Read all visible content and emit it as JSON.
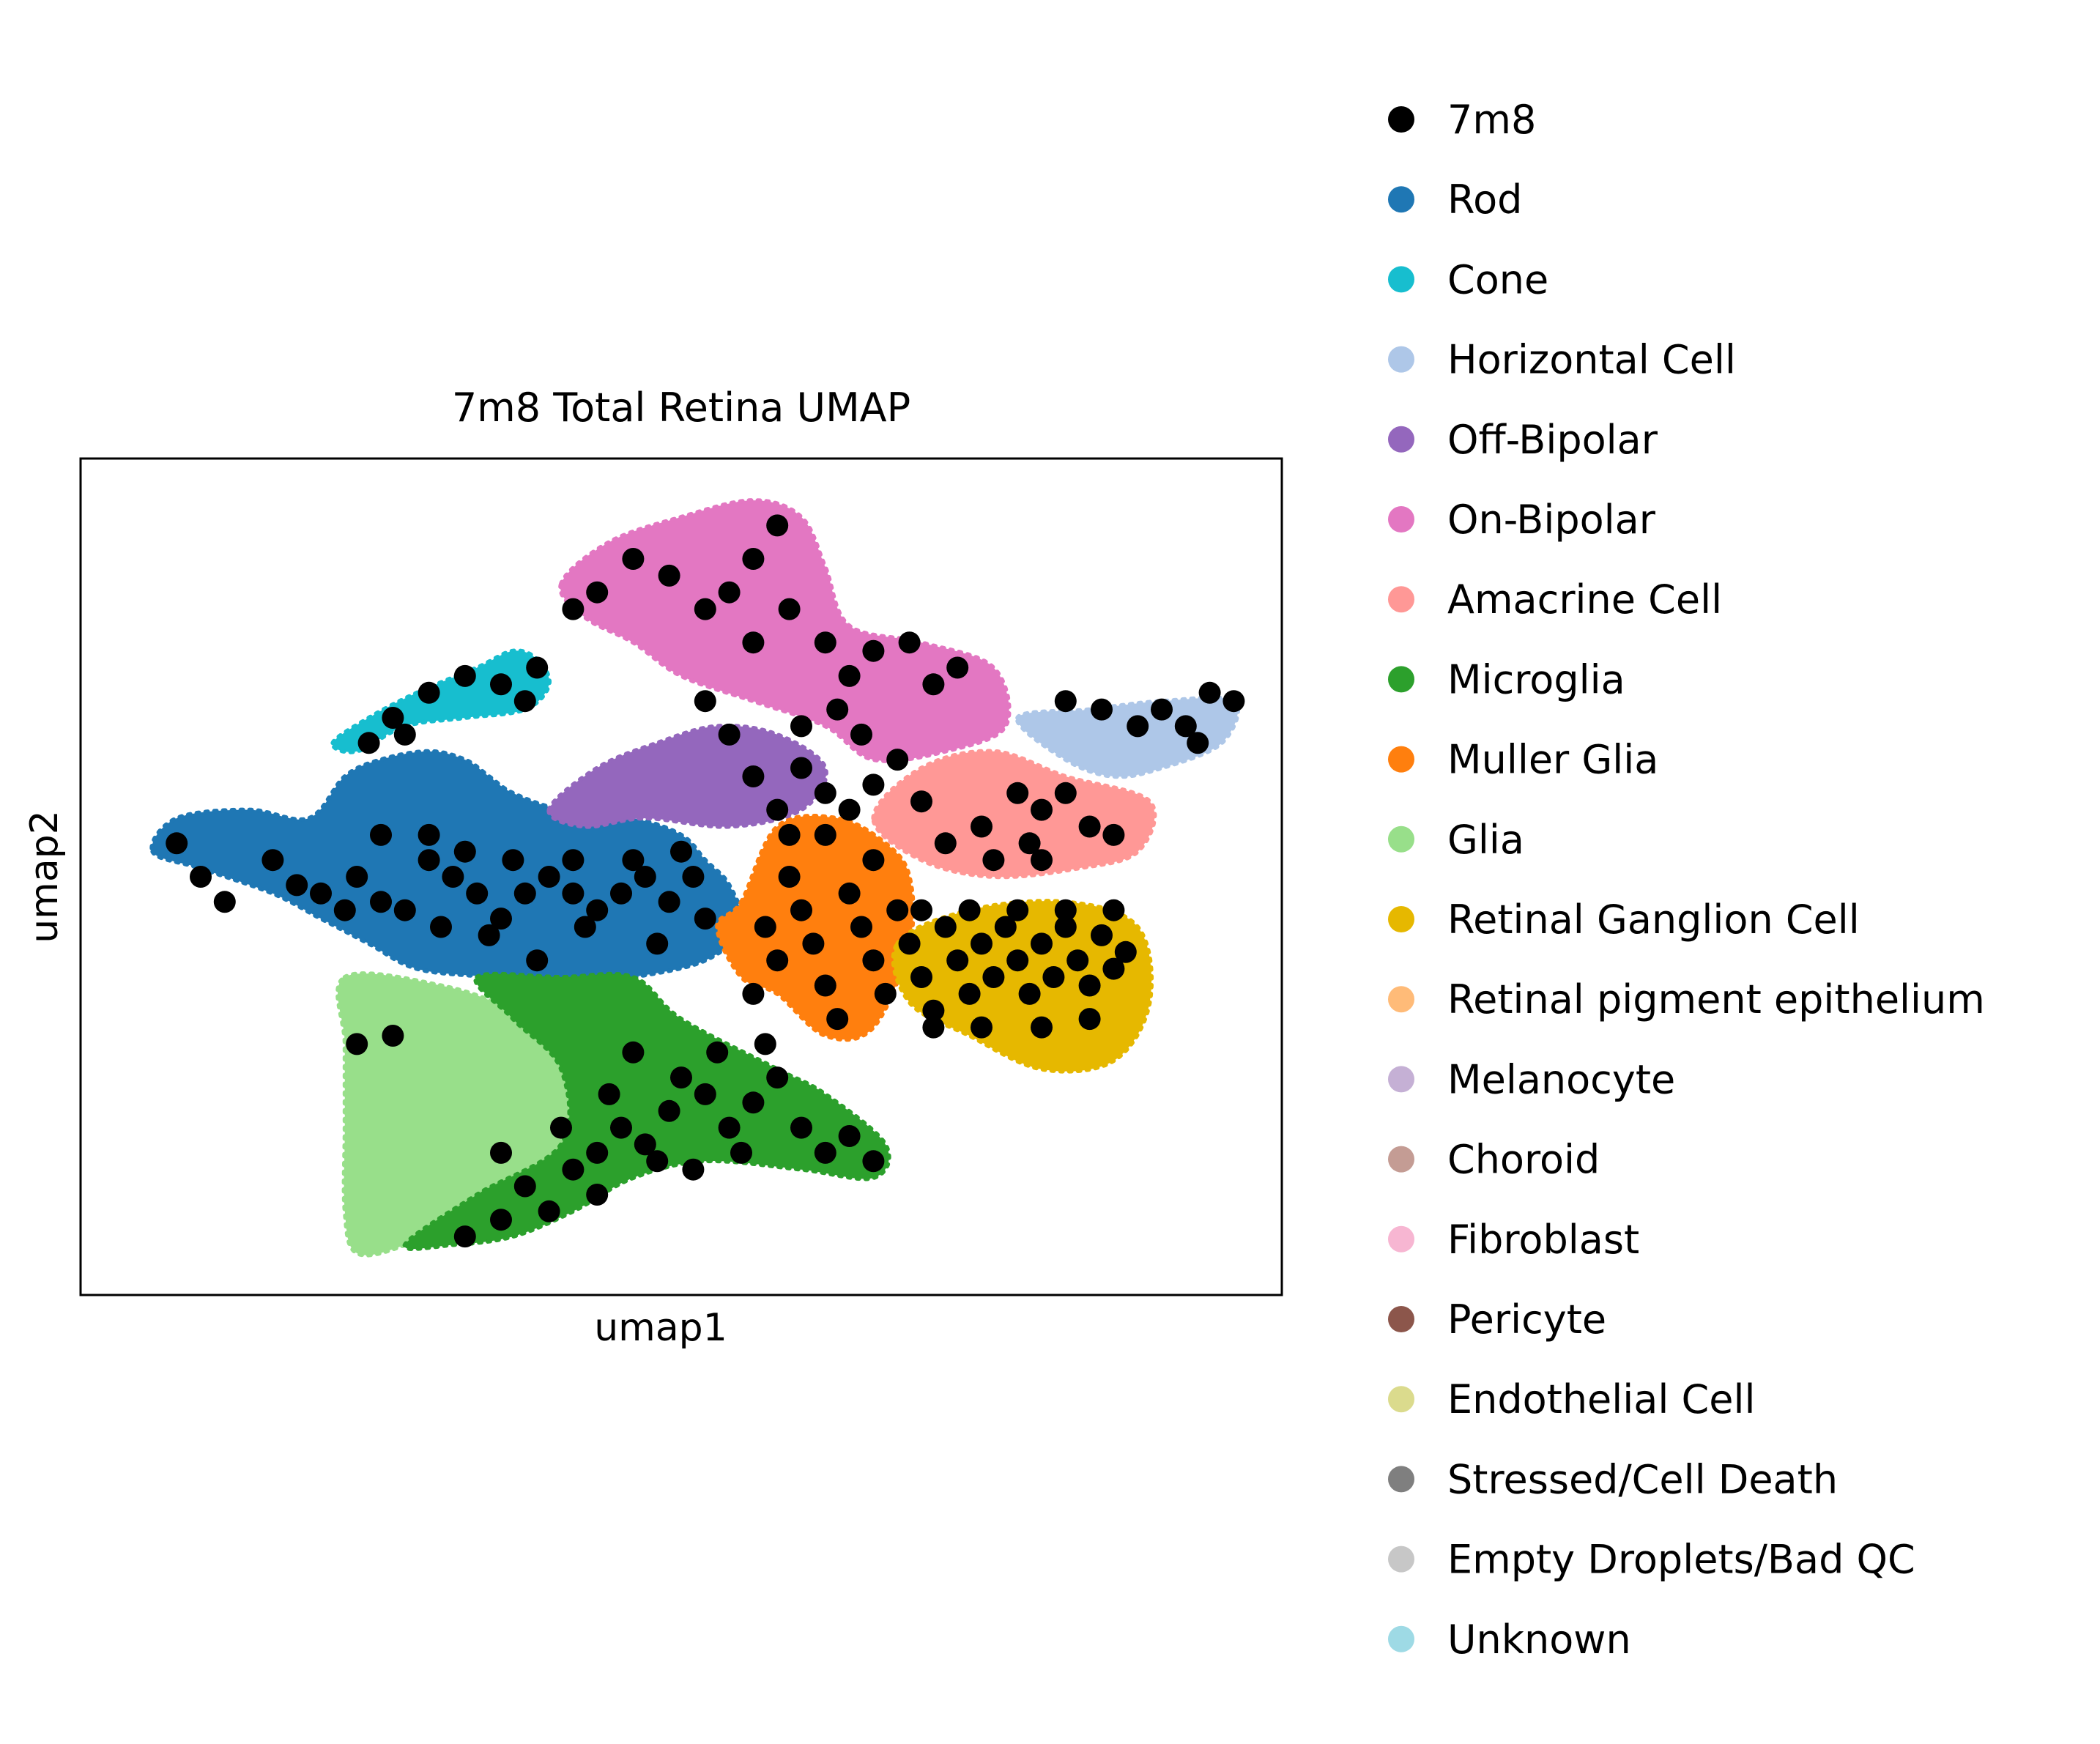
{
  "chart_data": {
    "type": "scatter",
    "title": "7m8 Total Retina UMAP",
    "xlabel": "umap1",
    "ylabel": "umap2",
    "xlim": [
      0,
      100
    ],
    "ylim": [
      0,
      100
    ],
    "grid": false,
    "ticks": false,
    "legend_position": "right",
    "highlight_series": "7m8",
    "legend": [
      {
        "name": "7m8",
        "color": "#000000"
      },
      {
        "name": "Rod",
        "color": "#1f77b4"
      },
      {
        "name": "Cone",
        "color": "#17becf"
      },
      {
        "name": "Horizontal Cell",
        "color": "#aec7e8"
      },
      {
        "name": "Off-Bipolar",
        "color": "#9467bd"
      },
      {
        "name": "On-Bipolar",
        "color": "#e377c2"
      },
      {
        "name": "Amacrine Cell",
        "color": "#ff9896"
      },
      {
        "name": "Microglia",
        "color": "#2ca02c"
      },
      {
        "name": "Muller Glia",
        "color": "#ff7f0e"
      },
      {
        "name": "Glia",
        "color": "#98df8a"
      },
      {
        "name": "Retinal Ganglion Cell",
        "color": "#e6b800"
      },
      {
        "name": "Retinal pigment epithelium",
        "color": "#ffbb78"
      },
      {
        "name": "Melanocyte",
        "color": "#c5b0d5"
      },
      {
        "name": "Choroid",
        "color": "#c49c94"
      },
      {
        "name": "Fibroblast",
        "color": "#f7b6d2"
      },
      {
        "name": "Pericyte",
        "color": "#8c564b"
      },
      {
        "name": "Endothelial Cell",
        "color": "#dbdb8d"
      },
      {
        "name": "Stressed/Cell Death",
        "color": "#7f7f7f"
      },
      {
        "name": "Empty Droplets/Bad QC",
        "color": "#c7c7c7"
      },
      {
        "name": "Unknown",
        "color": "#9edae5"
      }
    ],
    "clusters": [
      {
        "series": "Rod",
        "color": "#1f77b4",
        "points": [
          [
            6,
            53
          ],
          [
            10,
            51
          ],
          [
            16,
            48
          ],
          [
            20,
            45
          ],
          [
            24,
            42
          ],
          [
            28,
            39
          ],
          [
            34,
            38
          ],
          [
            40,
            37
          ],
          [
            46,
            38
          ],
          [
            52,
            40
          ],
          [
            55,
            44
          ],
          [
            54,
            49
          ],
          [
            52,
            52
          ],
          [
            50,
            55
          ],
          [
            46,
            57
          ],
          [
            40,
            58
          ],
          [
            36,
            60
          ],
          [
            34,
            62
          ],
          [
            32,
            64
          ],
          [
            29,
            65
          ],
          [
            25,
            64
          ],
          [
            22,
            62
          ],
          [
            19,
            57
          ],
          [
            14,
            58
          ],
          [
            8,
            57
          ]
        ]
      },
      {
        "series": "Cone",
        "color": "#17becf",
        "points": [
          [
            21,
            66
          ],
          [
            24,
            69
          ],
          [
            28,
            72
          ],
          [
            33,
            75
          ],
          [
            36,
            77
          ],
          [
            38,
            76
          ],
          [
            39,
            73
          ],
          [
            37,
            70
          ],
          [
            32,
            69
          ],
          [
            27,
            68
          ],
          [
            23,
            65
          ]
        ]
      },
      {
        "series": "Glia",
        "color": "#98df8a",
        "points": [
          [
            22,
            38
          ],
          [
            30,
            37
          ],
          [
            36,
            34
          ],
          [
            40,
            30
          ],
          [
            42,
            22
          ],
          [
            38,
            15
          ],
          [
            32,
            10
          ],
          [
            27,
            6
          ],
          [
            23,
            5
          ],
          [
            22,
            10
          ],
          [
            22,
            20
          ],
          [
            22,
            30
          ]
        ]
      },
      {
        "series": "Microglia",
        "color": "#2ca02c",
        "points": [
          [
            33,
            38
          ],
          [
            40,
            38
          ],
          [
            46,
            38
          ],
          [
            50,
            33
          ],
          [
            58,
            27
          ],
          [
            62,
            24
          ],
          [
            67,
            18
          ],
          [
            66,
            14
          ],
          [
            60,
            15
          ],
          [
            52,
            16
          ],
          [
            46,
            14
          ],
          [
            41,
            10
          ],
          [
            36,
            7
          ],
          [
            31,
            6
          ],
          [
            27,
            6
          ],
          [
            33,
            12
          ],
          [
            40,
            18
          ],
          [
            40,
            27
          ],
          [
            36,
            33
          ]
        ]
      },
      {
        "series": "Muller Glia",
        "color": "#ff7f0e",
        "points": [
          [
            55,
            47
          ],
          [
            58,
            56
          ],
          [
            63,
            57
          ],
          [
            67,
            54
          ],
          [
            69,
            50
          ],
          [
            69,
            42
          ],
          [
            66,
            32
          ],
          [
            62,
            31
          ],
          [
            58,
            36
          ],
          [
            55,
            38
          ],
          [
            53,
            44
          ]
        ]
      },
      {
        "series": "Off-Bipolar",
        "color": "#9467bd",
        "points": [
          [
            39,
            58
          ],
          [
            43,
            63
          ],
          [
            48,
            66
          ],
          [
            53,
            68
          ],
          [
            58,
            67
          ],
          [
            62,
            63
          ],
          [
            60,
            58
          ],
          [
            54,
            56
          ],
          [
            47,
            57
          ],
          [
            42,
            56
          ]
        ]
      },
      {
        "series": "On-Bipolar",
        "color": "#e377c2",
        "points": [
          [
            40,
            85
          ],
          [
            44,
            90
          ],
          [
            50,
            93
          ],
          [
            56,
            95
          ],
          [
            60,
            93
          ],
          [
            62,
            87
          ],
          [
            64,
            80
          ],
          [
            70,
            78
          ],
          [
            76,
            75
          ],
          [
            77,
            68
          ],
          [
            72,
            65
          ],
          [
            66,
            64
          ],
          [
            62,
            68
          ],
          [
            56,
            71
          ],
          [
            50,
            74
          ],
          [
            46,
            78
          ],
          [
            42,
            81
          ]
        ]
      },
      {
        "series": "Amacrine Cell",
        "color": "#ff9896",
        "points": [
          [
            66,
            57
          ],
          [
            70,
            63
          ],
          [
            76,
            65
          ],
          [
            82,
            62
          ],
          [
            89,
            59
          ],
          [
            88,
            53
          ],
          [
            83,
            51
          ],
          [
            76,
            50
          ],
          [
            70,
            52
          ]
        ]
      },
      {
        "series": "Horizontal Cell",
        "color": "#aec7e8",
        "points": [
          [
            78,
            69
          ],
          [
            84,
            70
          ],
          [
            90,
            71
          ],
          [
            96,
            71
          ],
          [
            95,
            66
          ],
          [
            90,
            63
          ],
          [
            86,
            62
          ],
          [
            82,
            64
          ]
        ]
      },
      {
        "series": "Retinal Ganglion Cell",
        "color": "#e6b800",
        "points": [
          [
            68,
            42
          ],
          [
            74,
            46
          ],
          [
            82,
            47
          ],
          [
            88,
            44
          ],
          [
            89,
            35
          ],
          [
            86,
            28
          ],
          [
            80,
            27
          ],
          [
            74,
            31
          ],
          [
            69,
            35
          ]
        ]
      }
    ],
    "points_7m8": [
      [
        8,
        54
      ],
      [
        10,
        50
      ],
      [
        12,
        47
      ],
      [
        16,
        52
      ],
      [
        18,
        49
      ],
      [
        20,
        48
      ],
      [
        23,
        50
      ],
      [
        25,
        47
      ],
      [
        27,
        46
      ],
      [
        29,
        52
      ],
      [
        31,
        50
      ],
      [
        33,
        48
      ],
      [
        35,
        45
      ],
      [
        37,
        48
      ],
      [
        39,
        50
      ],
      [
        41,
        48
      ],
      [
        43,
        46
      ],
      [
        45,
        48
      ],
      [
        47,
        50
      ],
      [
        49,
        47
      ],
      [
        51,
        50
      ],
      [
        52,
        45
      ],
      [
        25,
        55
      ],
      [
        29,
        55
      ],
      [
        32,
        53
      ],
      [
        36,
        52
      ],
      [
        41,
        52
      ],
      [
        46,
        52
      ],
      [
        50,
        53
      ],
      [
        22,
        46
      ],
      [
        30,
        44
      ],
      [
        34,
        43
      ],
      [
        38,
        40
      ],
      [
        42,
        44
      ],
      [
        48,
        42
      ],
      [
        24,
        66
      ],
      [
        26,
        69
      ],
      [
        29,
        72
      ],
      [
        32,
        74
      ],
      [
        35,
        73
      ],
      [
        37,
        71
      ],
      [
        38,
        75
      ],
      [
        27,
        67
      ],
      [
        41,
        82
      ],
      [
        43,
        84
      ],
      [
        46,
        88
      ],
      [
        49,
        86
      ],
      [
        52,
        82
      ],
      [
        54,
        84
      ],
      [
        56,
        88
      ],
      [
        58,
        92
      ],
      [
        56,
        78
      ],
      [
        59,
        82
      ],
      [
        62,
        78
      ],
      [
        64,
        74
      ],
      [
        66,
        77
      ],
      [
        69,
        78
      ],
      [
        71,
        73
      ],
      [
        73,
        75
      ],
      [
        52,
        71
      ],
      [
        54,
        67
      ],
      [
        56,
        62
      ],
      [
        60,
        63
      ],
      [
        62,
        60
      ],
      [
        64,
        58
      ],
      [
        66,
        61
      ],
      [
        68,
        64
      ],
      [
        60,
        68
      ],
      [
        58,
        58
      ],
      [
        63,
        70
      ],
      [
        65,
        67
      ],
      [
        70,
        59
      ],
      [
        72,
        54
      ],
      [
        75,
        56
      ],
      [
        78,
        60
      ],
      [
        80,
        58
      ],
      [
        82,
        60
      ],
      [
        84,
        56
      ],
      [
        86,
        55
      ],
      [
        80,
        52
      ],
      [
        76,
        52
      ],
      [
        79,
        54
      ],
      [
        59,
        50
      ],
      [
        60,
        46
      ],
      [
        61,
        42
      ],
      [
        62,
        37
      ],
      [
        63,
        33
      ],
      [
        64,
        48
      ],
      [
        65,
        44
      ],
      [
        66,
        40
      ],
      [
        67,
        36
      ],
      [
        68,
        46
      ],
      [
        69,
        42
      ],
      [
        70,
        38
      ],
      [
        71,
        34
      ],
      [
        72,
        44
      ],
      [
        73,
        40
      ],
      [
        74,
        36
      ],
      [
        75,
        42
      ],
      [
        76,
        38
      ],
      [
        77,
        44
      ],
      [
        78,
        40
      ],
      [
        79,
        36
      ],
      [
        80,
        42
      ],
      [
        81,
        38
      ],
      [
        82,
        44
      ],
      [
        83,
        40
      ],
      [
        84,
        37
      ],
      [
        85,
        43
      ],
      [
        86,
        39
      ],
      [
        87,
        41
      ],
      [
        57,
        44
      ],
      [
        58,
        40
      ],
      [
        56,
        36
      ],
      [
        59,
        55
      ],
      [
        62,
        55
      ],
      [
        66,
        52
      ],
      [
        70,
        46
      ],
      [
        74,
        46
      ],
      [
        78,
        46
      ],
      [
        82,
        46
      ],
      [
        86,
        46
      ],
      [
        71,
        32
      ],
      [
        75,
        32
      ],
      [
        80,
        32
      ],
      [
        84,
        33
      ],
      [
        23,
        30
      ],
      [
        26,
        31
      ],
      [
        32,
        7
      ],
      [
        35,
        9
      ],
      [
        37,
        13
      ],
      [
        39,
        10
      ],
      [
        41,
        15
      ],
      [
        43,
        17
      ],
      [
        45,
        20
      ],
      [
        47,
        18
      ],
      [
        49,
        22
      ],
      [
        50,
        26
      ],
      [
        52,
        24
      ],
      [
        54,
        20
      ],
      [
        56,
        23
      ],
      [
        58,
        26
      ],
      [
        60,
        20
      ],
      [
        62,
        17
      ],
      [
        64,
        19
      ],
      [
        66,
        16
      ],
      [
        53,
        29
      ],
      [
        57,
        30
      ],
      [
        48,
        16
      ],
      [
        51,
        15
      ],
      [
        55,
        17
      ],
      [
        35,
        17
      ],
      [
        40,
        20
      ],
      [
        44,
        24
      ],
      [
        46,
        29
      ],
      [
        43,
        12
      ],
      [
        82,
        71
      ],
      [
        85,
        70
      ],
      [
        88,
        68
      ],
      [
        90,
        70
      ],
      [
        92,
        68
      ],
      [
        94,
        72
      ],
      [
        96,
        71
      ],
      [
        93,
        66
      ]
    ]
  }
}
